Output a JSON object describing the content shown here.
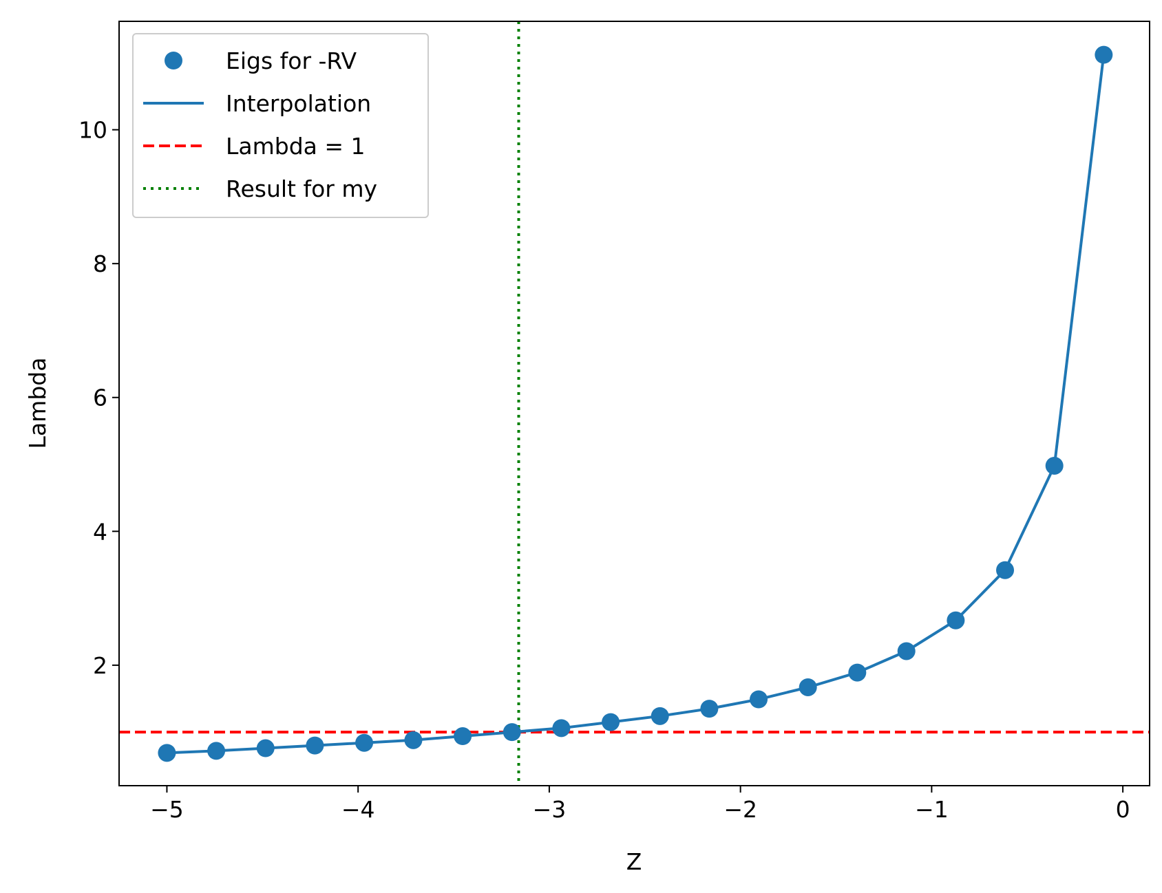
{
  "chart_data": {
    "type": "scatter",
    "xlabel": "Z",
    "ylabel": "Lambda",
    "xlim": [
      -5.25,
      0.14
    ],
    "ylim": [
      0.2,
      11.62
    ],
    "xticks": [
      -5,
      -4,
      -3,
      -2,
      -1,
      0
    ],
    "xtick_labels": [
      "−5",
      "−4",
      "−3",
      "−2",
      "−1",
      "0"
    ],
    "yticks": [
      2,
      4,
      6,
      8,
      10
    ],
    "ytick_labels": [
      "2",
      "4",
      "6",
      "8",
      "10"
    ],
    "grid": false,
    "legend_position": "top-left",
    "series": [
      {
        "name": "Eigs for -RV",
        "kind": "scatter",
        "color": "#1f77b4",
        "x": [
          -5.0,
          -4.742,
          -4.484,
          -4.226,
          -3.968,
          -3.711,
          -3.453,
          -3.195,
          -2.937,
          -2.679,
          -2.421,
          -2.163,
          -1.905,
          -1.647,
          -1.389,
          -1.132,
          -0.874,
          -0.616,
          -0.358,
          -0.1
        ],
        "y": [
          0.69,
          0.72,
          0.76,
          0.8,
          0.84,
          0.88,
          0.94,
          1.0,
          1.06,
          1.15,
          1.24,
          1.35,
          1.49,
          1.67,
          1.89,
          2.21,
          2.67,
          3.42,
          4.98,
          11.12
        ]
      },
      {
        "name": "Interpolation",
        "kind": "line",
        "color": "#1f77b4",
        "style": "solid",
        "x": [
          -5.0,
          -4.742,
          -4.484,
          -4.226,
          -3.968,
          -3.711,
          -3.453,
          -3.195,
          -2.937,
          -2.679,
          -2.421,
          -2.163,
          -1.905,
          -1.647,
          -1.389,
          -1.132,
          -0.874,
          -0.616,
          -0.358,
          -0.1
        ],
        "y": [
          0.69,
          0.72,
          0.76,
          0.8,
          0.84,
          0.88,
          0.94,
          1.0,
          1.06,
          1.15,
          1.24,
          1.35,
          1.49,
          1.67,
          1.89,
          2.21,
          2.67,
          3.42,
          4.98,
          11.12
        ]
      },
      {
        "name": "Lambda = 1",
        "kind": "hline",
        "color": "#ff0000",
        "style": "dashed",
        "y": 1
      },
      {
        "name": "Result for my",
        "kind": "vline",
        "color": "#008000",
        "style": "dotted",
        "x": -3.16
      }
    ]
  }
}
